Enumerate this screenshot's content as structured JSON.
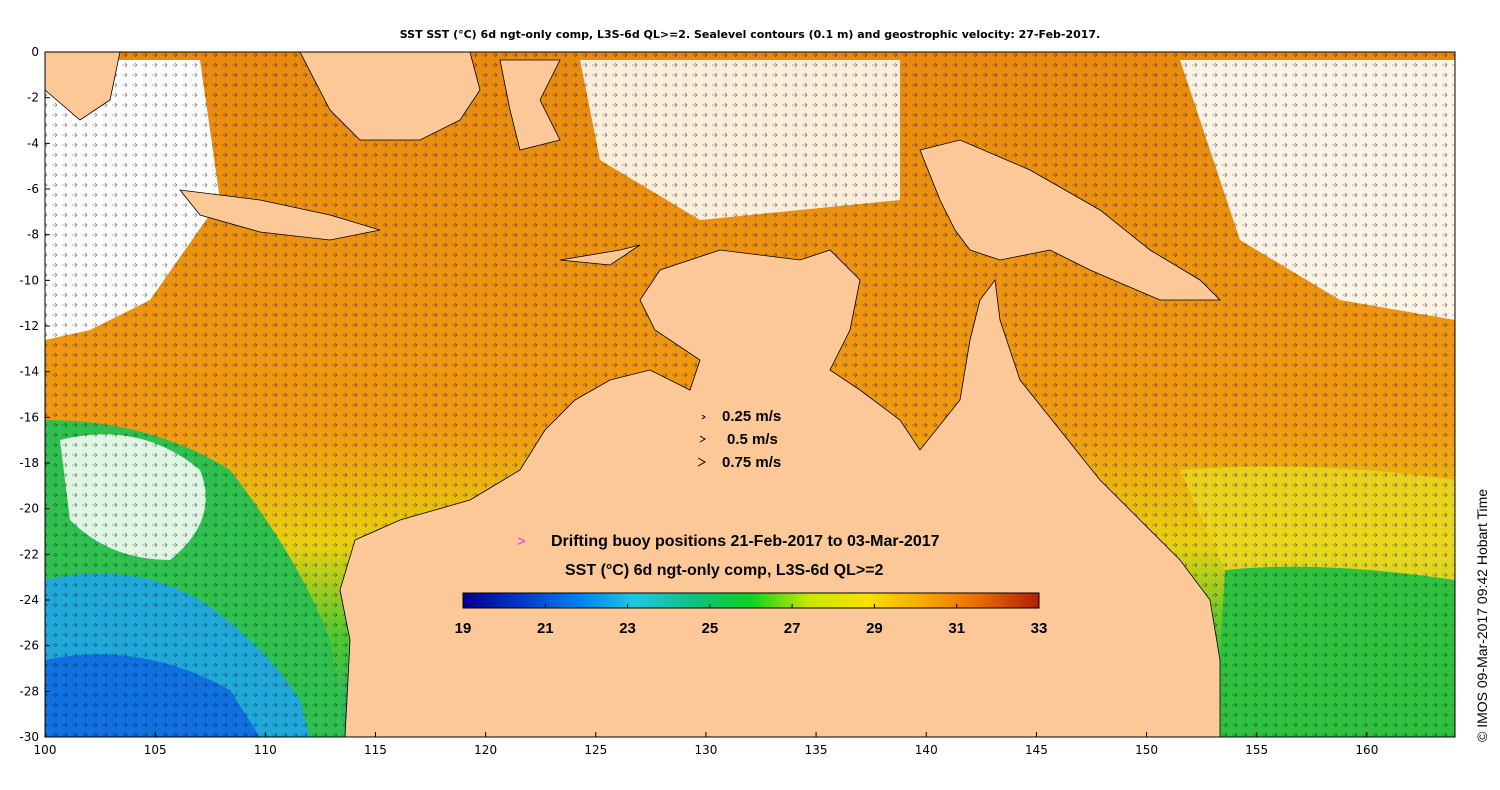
{
  "figure": {
    "title": "SST SST (°C) 6d ngt-only comp, L3S-6d QL>=2. Sealevel contours (0.1 m) and geostrophic velocity: 27-Feb-2017.",
    "credit": "©  IMOS 09-Mar-2017 09:42 Hobart Time"
  },
  "map": {
    "lon_range": [
      100,
      164
    ],
    "lat_range": [
      -30,
      0
    ],
    "lon_ticks": [
      "100",
      "105",
      "110",
      "115",
      "120",
      "125",
      "130",
      "135",
      "140",
      "145",
      "150",
      "155",
      "160"
    ],
    "lat_ticks": [
      "0",
      "-2",
      "-4",
      "-6",
      "-8",
      "-10",
      "-12",
      "-14",
      "-16",
      "-18",
      "-20",
      "-22",
      "-24",
      "-26",
      "-28",
      "-30"
    ],
    "land_color": "#fcc898",
    "missing_color": "#ffffff"
  },
  "velocity_legend": [
    {
      "text": "0.25 m/s"
    },
    {
      "text": "0.5 m/s"
    },
    {
      "text": "0.75 m/s"
    }
  ],
  "buoy_legend": {
    "symbol": ">",
    "symbol_color": "#e040e0",
    "text": "Drifting buoy positions 21-Feb-2017 to 03-Mar-2017"
  },
  "colorbar": {
    "title": "SST (°C) 6d ngt-only comp, L3S-6d QL>=2",
    "min": 19,
    "max": 33,
    "tick_labels": [
      "19",
      "21",
      "23",
      "25",
      "27",
      "29",
      "31",
      "33"
    ],
    "colors": [
      "#00008c",
      "#0038c8",
      "#0080f0",
      "#20c8e0",
      "#10c080",
      "#10d020",
      "#c8e800",
      "#f8e000",
      "#f8a800",
      "#e86800",
      "#b02000"
    ]
  }
}
